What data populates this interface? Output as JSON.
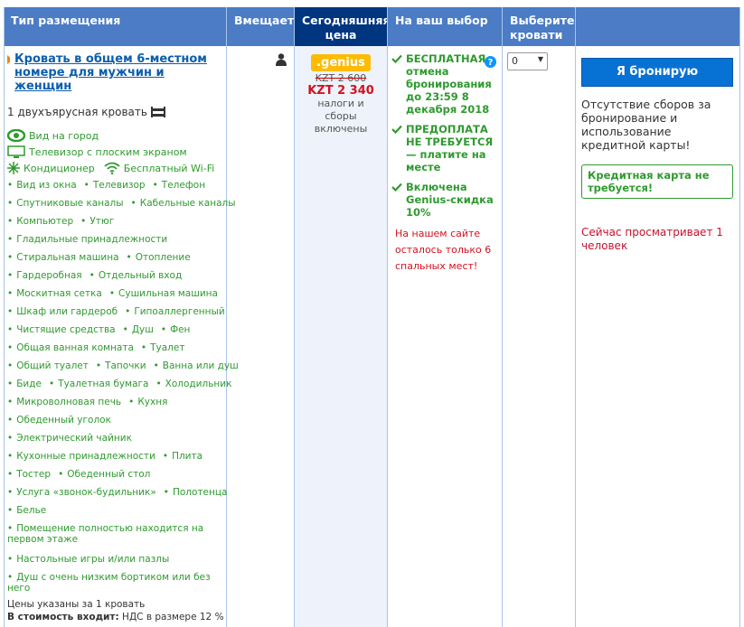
{
  "header": {
    "columns": [
      "Тип размещения",
      "Вмещает",
      "Сегодняшняя цена",
      "На ваш выбор",
      "Выберите кровати",
      ""
    ]
  },
  "room": {
    "title": "Кровать в общем 6-местном номере для мужчин и женщин",
    "bed": "1 двухъярусная кровать",
    "facilities": [
      "Вид на город",
      "Телевизор с плоским экраном",
      "Кондиционер",
      "Бесплатный Wi-Fi"
    ],
    "amenities": [
      [
        "Вид из окна",
        "Телевизор",
        "Телефон"
      ],
      [
        "Спутниковые каналы",
        "Кабельные каналы"
      ],
      [
        "Компьютер",
        "Утюг"
      ],
      [
        "Гладильные принадлежности"
      ],
      [
        "Стиральная машина",
        "Отопление"
      ],
      [
        "Гардеробная",
        "Отдельный вход"
      ],
      [
        "Москитная сетка",
        "Сушильная машина"
      ],
      [
        "Шкаф или гардероб",
        "Гипоаллергенный"
      ],
      [
        "Чистящие средства",
        "Душ",
        "Фен"
      ],
      [
        "Общая ванная комната",
        "Туалет"
      ],
      [
        "Общий туалет",
        "Тапочки",
        "Ванна или душ"
      ],
      [
        "Биде",
        "Туалетная бумага",
        "Холодильник"
      ],
      [
        "Микроволновая печь",
        "Кухня"
      ],
      [
        "Обеденный уголок"
      ],
      [
        "Электрический чайник"
      ],
      [
        "Кухонные принадлежности",
        "Плита"
      ],
      [
        "Тостер",
        "Обеденный стол"
      ],
      [
        "Услуга «звонок-будильник»",
        "Полотенца"
      ],
      [
        "Белье"
      ],
      [
        "Помещение полностью находится на первом этаже"
      ],
      [
        "Настольные игры и/или пазлы"
      ],
      [
        "Душ с очень низким бортиком или без него"
      ]
    ],
    "price_note": "Цены указаны за 1 кровать",
    "included_label": "В стоимость входит:",
    "included": "НДС в размере 12 %"
  },
  "price": {
    "badge": ".genius",
    "old": "KZT 2 600",
    "new": "KZT 2 340",
    "note": "налоги и сборы включены"
  },
  "conditions": [
    {
      "title": "БЕСПЛАТНАЯ",
      "text": "отмена бронирования до 23:59 8 декабря 2018"
    },
    {
      "title": "ПРЕДОПЛАТА НЕ ТРЕБУЕТСЯ",
      "text": "— платите на месте"
    },
    {
      "title": "Включена",
      "text": "Genius-скидка 10%"
    }
  ],
  "scarcity": "На нашем сайте осталось только 6 спальных мест!",
  "select": "0",
  "booking": {
    "button": "Я бронирую",
    "note": "Отсутствие сборов за бронирование и использование кредитной карты!",
    "card": "Кредитная карта не требуется!",
    "viewing": "Сейчас просматривает 1 человек"
  }
}
